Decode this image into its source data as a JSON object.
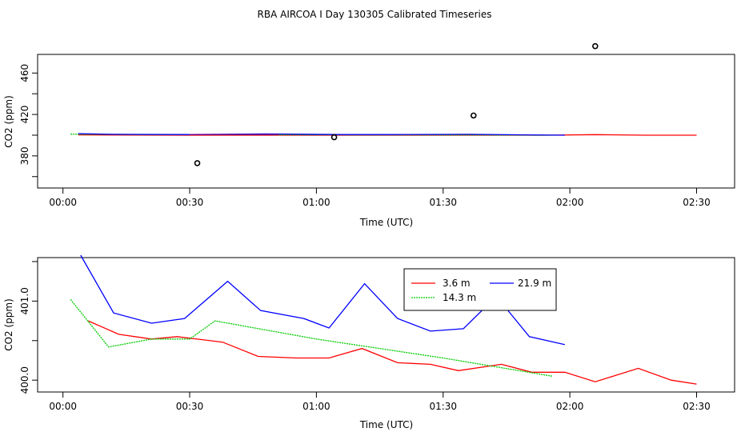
{
  "title": "RBA AIRCOA I  Day 130305  Calibrated Timeseries",
  "chart_data": [
    {
      "type": "line",
      "xlabel": "Time (UTC)",
      "ylabel": "CO2 (ppm)",
      "xlim": [
        -0.1,
        2.65
      ],
      "ylim": [
        349,
        478
      ],
      "x_ticks": [
        0,
        0.5,
        1,
        1.5,
        2,
        2.5
      ],
      "x_tick_labels": [
        "00:00",
        "00:30",
        "01:00",
        "01:30",
        "02:00",
        "02:30"
      ],
      "y_ticks": [
        380,
        420,
        460
      ],
      "y_tick_labels": [
        "380",
        "420",
        "460"
      ],
      "series": [
        {
          "name": "3.6 m",
          "color": "#ff0000",
          "x": [
            0.06,
            0.5,
            1.0,
            1.5,
            1.9,
            2.1,
            2.3,
            2.5
          ],
          "y": [
            400.3,
            400.0,
            400.0,
            400.0,
            400.0,
            400.5,
            400.0,
            400.0
          ]
        },
        {
          "name": "14.3 m",
          "color": "#00cc00",
          "x": [
            0.03,
            0.3,
            0.6,
            1.0,
            1.3,
            1.6,
            1.95
          ],
          "y": [
            401.0,
            400.6,
            400.5,
            400.4,
            400.3,
            400.2,
            400.0
          ]
        },
        {
          "name": "21.9 m",
          "color": "#0000ff",
          "x": [
            0.06,
            0.2,
            0.5,
            0.8,
            1.1,
            1.3,
            1.6,
            1.98
          ],
          "y": [
            401.5,
            400.8,
            400.6,
            401.2,
            400.6,
            400.6,
            400.8,
            400.0
          ]
        },
        {
          "name": "",
          "color": "#800080",
          "x": [
            0.5,
            0.85
          ],
          "y": [
            400.6,
            400.6
          ]
        }
      ],
      "points": {
        "x": [
          0.53,
          1.07,
          1.62,
          2.1
        ],
        "y": [
          373,
          398,
          419,
          486
        ]
      }
    },
    {
      "type": "line",
      "xlabel": "Time (UTC)",
      "ylabel": "CO2 (ppm)",
      "xlim": [
        -0.1,
        2.65
      ],
      "ylim": [
        399.85,
        401.55
      ],
      "x_ticks": [
        0,
        0.5,
        1,
        1.5,
        2,
        2.5
      ],
      "x_tick_labels": [
        "00:00",
        "00:30",
        "01:00",
        "01:30",
        "02:00",
        "02:30"
      ],
      "y_ticks": [
        400.0,
        401.0
      ],
      "y_tick_labels": [
        "400.0",
        "401.0"
      ],
      "legend": {
        "position": "top-center",
        "entries": [
          "3.6 m",
          "21.9 m",
          "14.3 m"
        ]
      },
      "series": [
        {
          "name": "3.6 m",
          "color": "#ff0000",
          "x": [
            0.1,
            0.22,
            0.35,
            0.45,
            0.63,
            0.77,
            0.92,
            1.05,
            1.18,
            1.32,
            1.45,
            1.56,
            1.73,
            1.85,
            1.98,
            2.1,
            2.27,
            2.4,
            2.5
          ],
          "y": [
            400.75,
            400.58,
            400.52,
            400.55,
            400.48,
            400.3,
            400.28,
            400.28,
            400.4,
            400.22,
            400.2,
            400.12,
            400.2,
            400.1,
            400.1,
            399.98,
            400.15,
            400.0,
            399.95
          ]
        },
        {
          "name": "21.9 m",
          "color": "#0000ff",
          "x": [
            0.07,
            0.2,
            0.35,
            0.48,
            0.65,
            0.78,
            0.95,
            1.05,
            1.19,
            1.32,
            1.45,
            1.58,
            1.71,
            1.84,
            1.98
          ],
          "y": [
            401.58,
            400.85,
            400.72,
            400.78,
            401.25,
            400.88,
            400.78,
            400.66,
            401.22,
            400.78,
            400.62,
            400.65,
            401.06,
            400.55,
            400.45
          ]
        },
        {
          "name": "14.3 m",
          "color": "#00cc00",
          "x": [
            0.03,
            0.18,
            0.35,
            0.5,
            0.6,
            1.0,
            1.5,
            1.93
          ],
          "y": [
            401.02,
            400.42,
            400.52,
            400.52,
            400.75,
            400.52,
            400.28,
            400.05
          ]
        }
      ]
    }
  ]
}
